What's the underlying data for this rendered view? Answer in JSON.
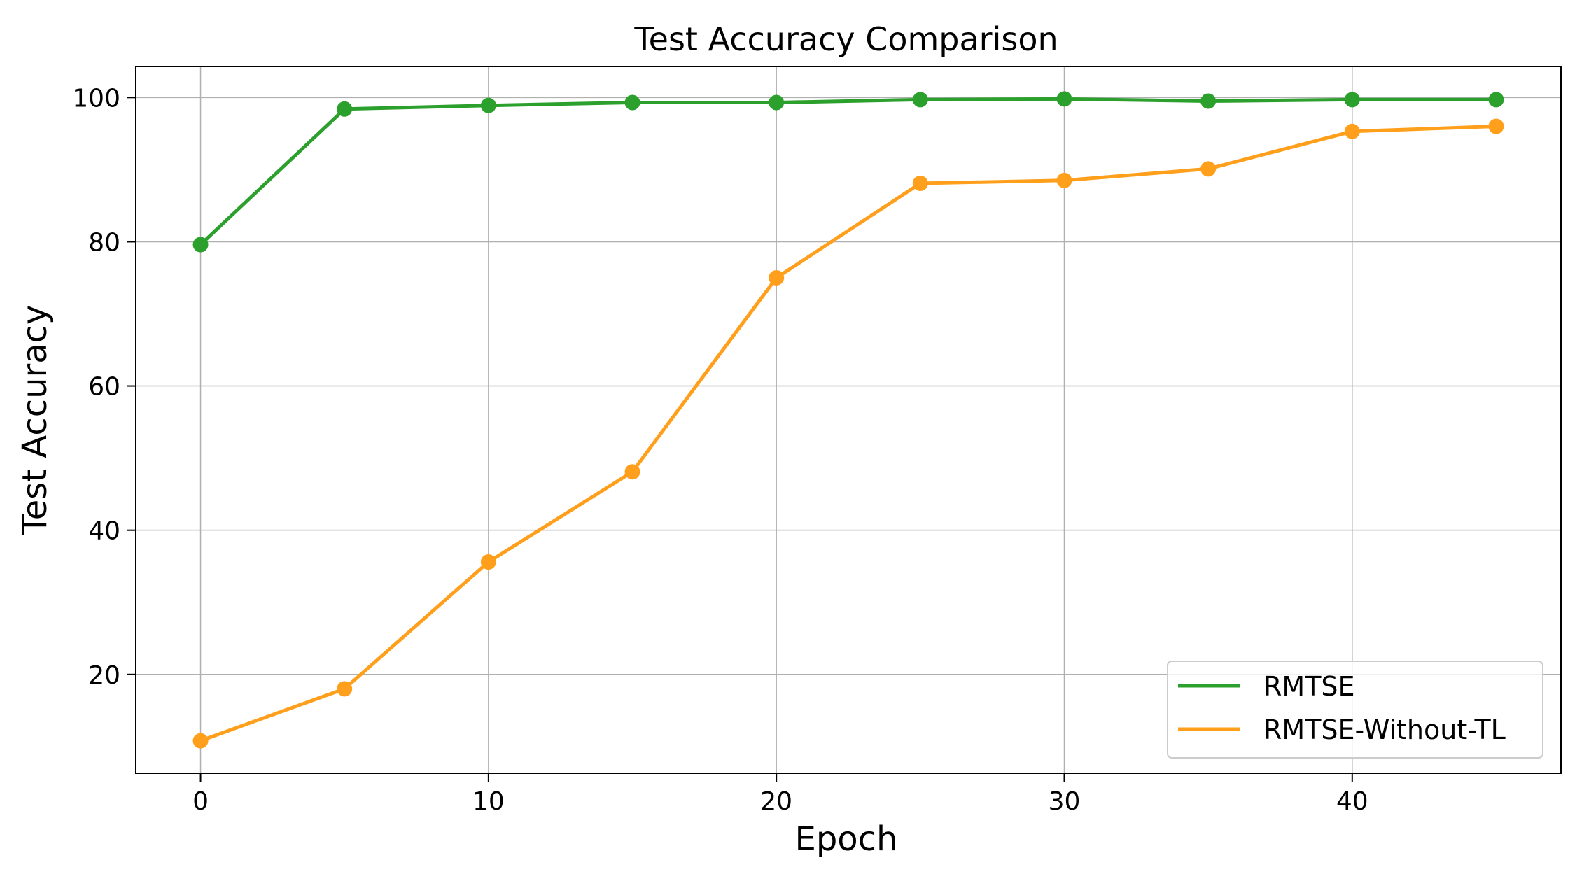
{
  "chart_data": {
    "type": "line",
    "title": "Test Accuracy Comparison",
    "xlabel": "Epoch",
    "ylabel": "Test Accuracy",
    "xlim": [
      -2.25,
      47.25
    ],
    "ylim": [
      6.3,
      104.3
    ],
    "x_ticks": [
      0,
      10,
      20,
      30,
      40
    ],
    "y_ticks": [
      20,
      40,
      60,
      80,
      100
    ],
    "grid": true,
    "legend_position": "lower-right",
    "x": [
      0,
      5,
      10,
      15,
      20,
      25,
      30,
      35,
      40,
      45
    ],
    "series": [
      {
        "name": "RMTSE",
        "color": "#2ca02c",
        "values": [
          79.6,
          98.4,
          98.9,
          99.3,
          99.3,
          99.7,
          99.8,
          99.5,
          99.7,
          99.7
        ]
      },
      {
        "name": "RMTSE-Without-TL",
        "color": "#ff9f1c",
        "values": [
          10.8,
          18.0,
          35.6,
          48.1,
          75.0,
          88.1,
          88.5,
          90.1,
          95.3,
          96.0
        ]
      }
    ]
  }
}
